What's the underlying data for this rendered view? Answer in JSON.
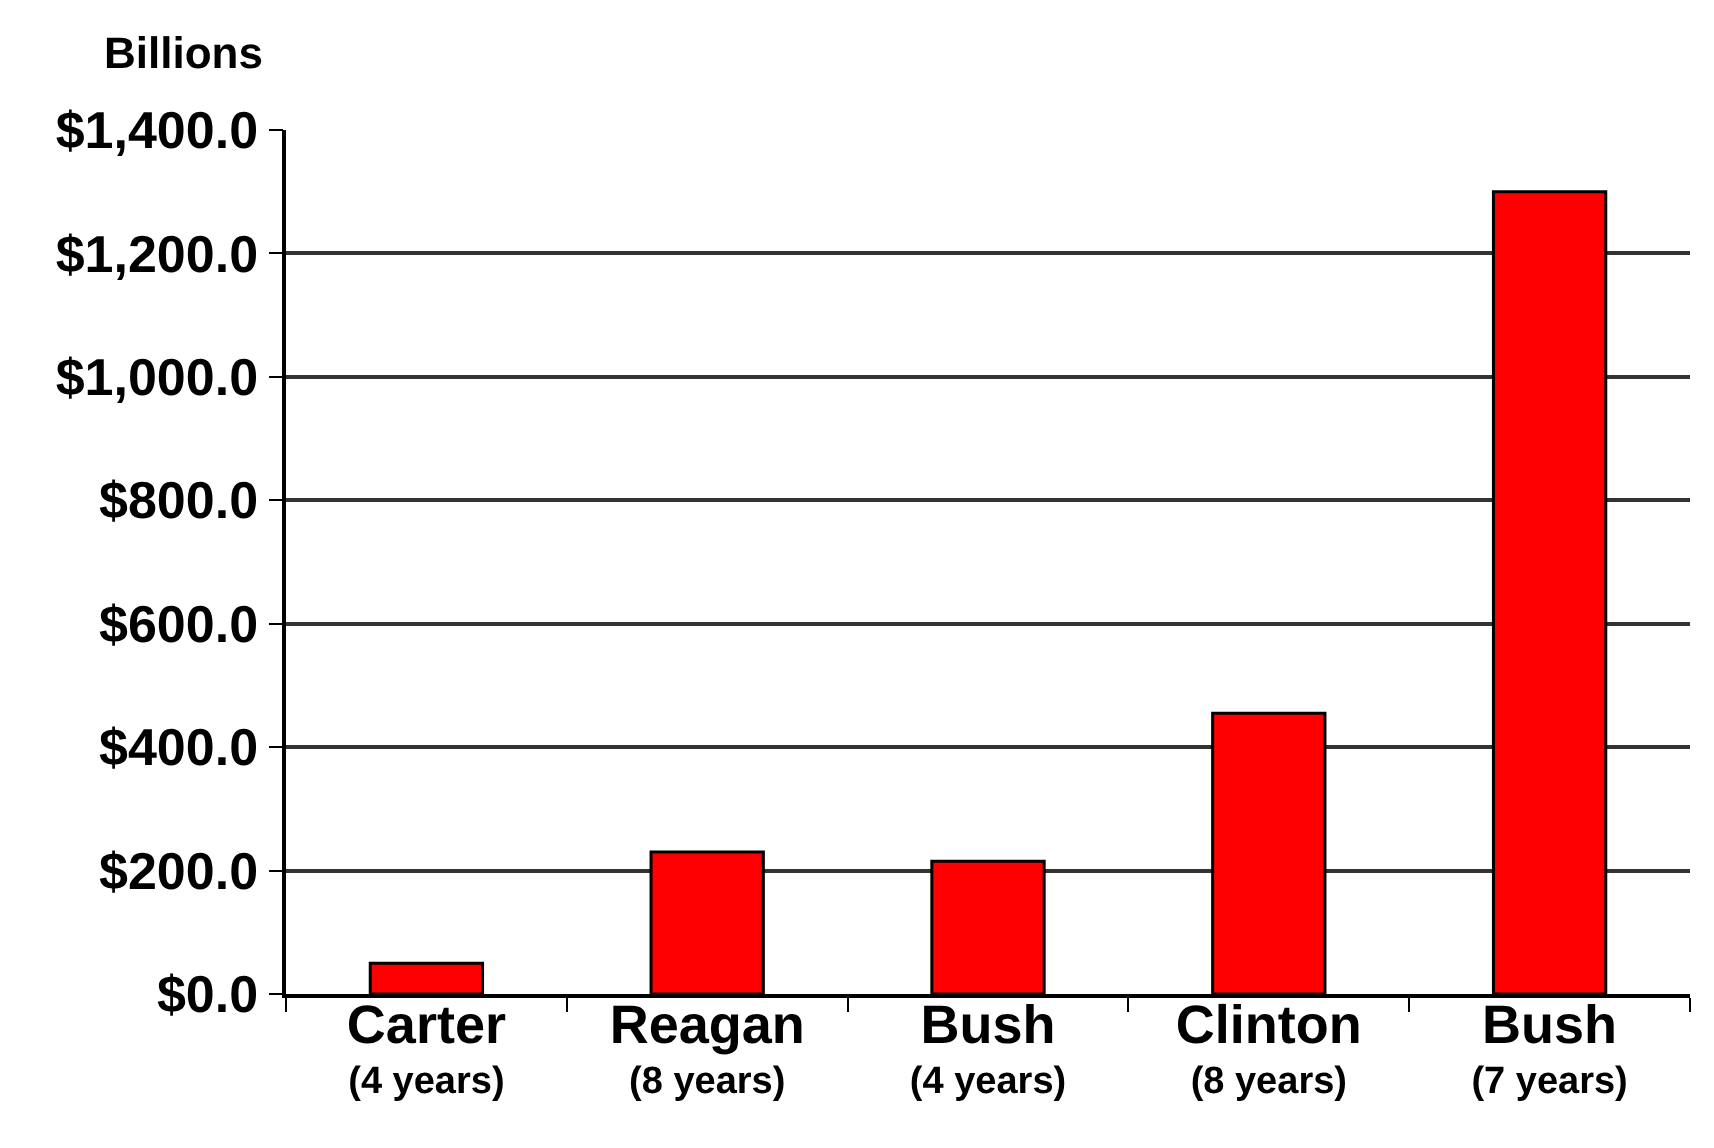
{
  "chart_data": {
    "type": "bar",
    "ylabel": "Billions",
    "categories": [
      "Carter\n(4 years)",
      "Reagan\n(8 years)",
      "Bush\n(4 years)",
      "Clinton\n(8 years)",
      "Bush\n(7 years)"
    ],
    "values": [
      50,
      230,
      215,
      455,
      1300
    ],
    "color": "#ff0000",
    "ylim": [
      0,
      1400
    ],
    "yticks": [
      {
        "value": 0,
        "label": "$0.0"
      },
      {
        "value": 200,
        "label": "$200.0"
      },
      {
        "value": 400,
        "label": "$400.0"
      },
      {
        "value": 600,
        "label": "$600.0"
      },
      {
        "value": 800,
        "label": "$800.0"
      },
      {
        "value": 1000,
        "label": "$1,000.0"
      },
      {
        "value": 1200,
        "label": "$1,200.0"
      },
      {
        "value": 1400,
        "label": "$1,400.0"
      }
    ],
    "grid": "y"
  }
}
